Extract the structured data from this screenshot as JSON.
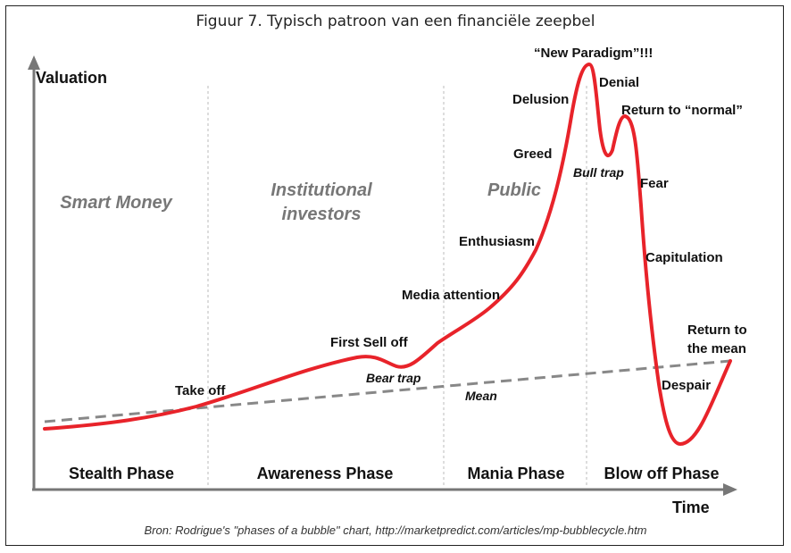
{
  "figure": {
    "title": "Figuur 7. Typisch patroon van een financiële zeepbel",
    "source": "Bron: Rodrigue's \"phases of a bubble\" chart, http://marketpredict.com/articles/mp-bubblecycle.htm"
  },
  "axes": {
    "y_label": "Valuation",
    "x_label": "Time"
  },
  "groups": {
    "smart_money": "Smart Money",
    "institutional_1": "Institutional",
    "institutional_2": "investors",
    "public": "Public"
  },
  "phases": {
    "stealth": "Stealth Phase",
    "awareness": "Awareness Phase",
    "mania": "Mania Phase",
    "blowoff": "Blow off Phase"
  },
  "annotations": {
    "take_off": "Take off",
    "first_sell_off": "First Sell off",
    "bear_trap": "Bear trap",
    "mean": "Mean",
    "media_attention": "Media attention",
    "enthusiasm": "Enthusiasm",
    "greed": "Greed",
    "delusion": "Delusion",
    "new_paradigm": "“New Paradigm”!!!",
    "denial": "Denial",
    "return_normal": "Return to “normal”",
    "bull_trap": "Bull trap",
    "fear": "Fear",
    "capitulation": "Capitulation",
    "return_mean_1": "Return to",
    "return_mean_2": "the mean",
    "despair": "Despair"
  },
  "colors": {
    "curve": "#e8232a",
    "mean_line": "#888888",
    "axis": "#777777",
    "divider": "#bbbbbb"
  }
}
